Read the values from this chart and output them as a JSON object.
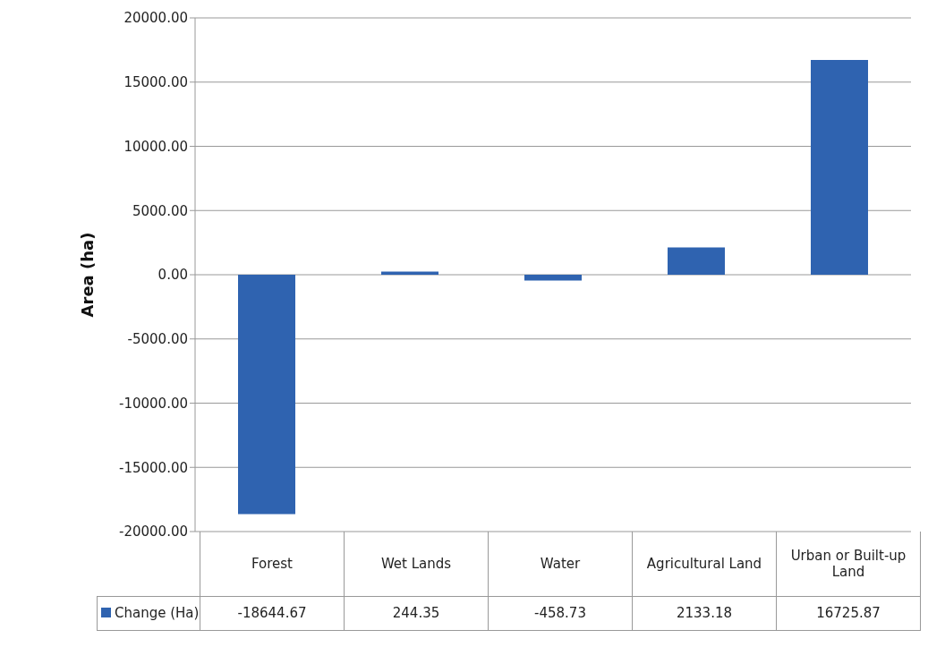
{
  "chart_data": {
    "type": "bar",
    "ylabel": "Area (ha)",
    "categories": [
      "Forest",
      "Wet Lands",
      "Water",
      "Agricultural Land",
      "Urban or Built-up Land"
    ],
    "series": [
      {
        "name": "Change (Ha)",
        "color": "#2f63b0",
        "values": [
          -18644.67,
          244.35,
          -458.73,
          2133.18,
          16725.87
        ]
      }
    ],
    "ylim": [
      -20000,
      20000
    ],
    "yticks": [
      {
        "value": -20000,
        "label": "-20000.00"
      },
      {
        "value": -15000,
        "label": "-15000.00"
      },
      {
        "value": -10000,
        "label": "-10000.00"
      },
      {
        "value": -5000,
        "label": "-5000.00"
      },
      {
        "value": 0,
        "label": "0.00"
      },
      {
        "value": 5000,
        "label": "5000.00"
      },
      {
        "value": 10000,
        "label": "10000.00"
      },
      {
        "value": 15000,
        "label": "15000.00"
      },
      {
        "value": 20000,
        "label": "20000.00"
      }
    ],
    "grid": "y",
    "legend": "bottom",
    "data_labels": true
  }
}
